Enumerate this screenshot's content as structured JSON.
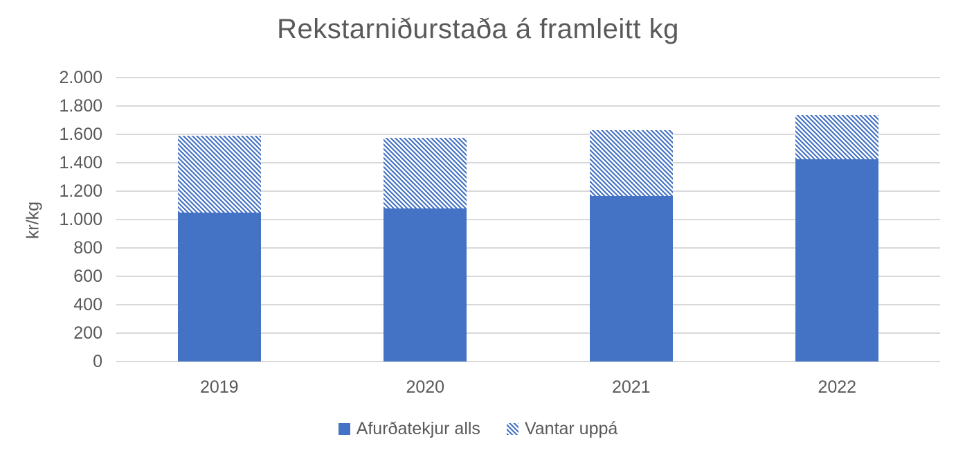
{
  "title": "Rekstarniðurstaða á framleitt kg",
  "chart_data": {
    "type": "bar",
    "stacked": true,
    "title": "Rekstarniðurstaða á framleitt kg",
    "categories": [
      "2019",
      "2020",
      "2021",
      "2022"
    ],
    "series": [
      {
        "name": "Afurðatekjur alls",
        "pattern": "solid",
        "color": "#4472C4",
        "values": [
          1050,
          1080,
          1165,
          1425
        ]
      },
      {
        "name": "Vantar uppá",
        "pattern": "diagonal-hatch",
        "color": "#4472C4",
        "values": [
          540,
          495,
          465,
          310
        ]
      }
    ],
    "stack_totals": [
      1590,
      1575,
      1630,
      1735
    ],
    "ylabel": "kr/kg",
    "xlabel": "",
    "ylim": [
      0,
      2000
    ],
    "ytick_values": [
      0,
      200,
      400,
      600,
      800,
      1000,
      1200,
      1400,
      1600,
      1800,
      2000
    ],
    "ytick_labels": [
      "0",
      "200",
      "400",
      "600",
      "800",
      "1.000",
      "1.200",
      "1.400",
      "1.600",
      "1.800",
      "2.000"
    ],
    "grid": true,
    "legend_position": "bottom",
    "colors": {
      "bar_blue": "#4472C4",
      "gridline": "#D9D9D9",
      "text": "#595959",
      "background": "#FFFFFF"
    }
  }
}
